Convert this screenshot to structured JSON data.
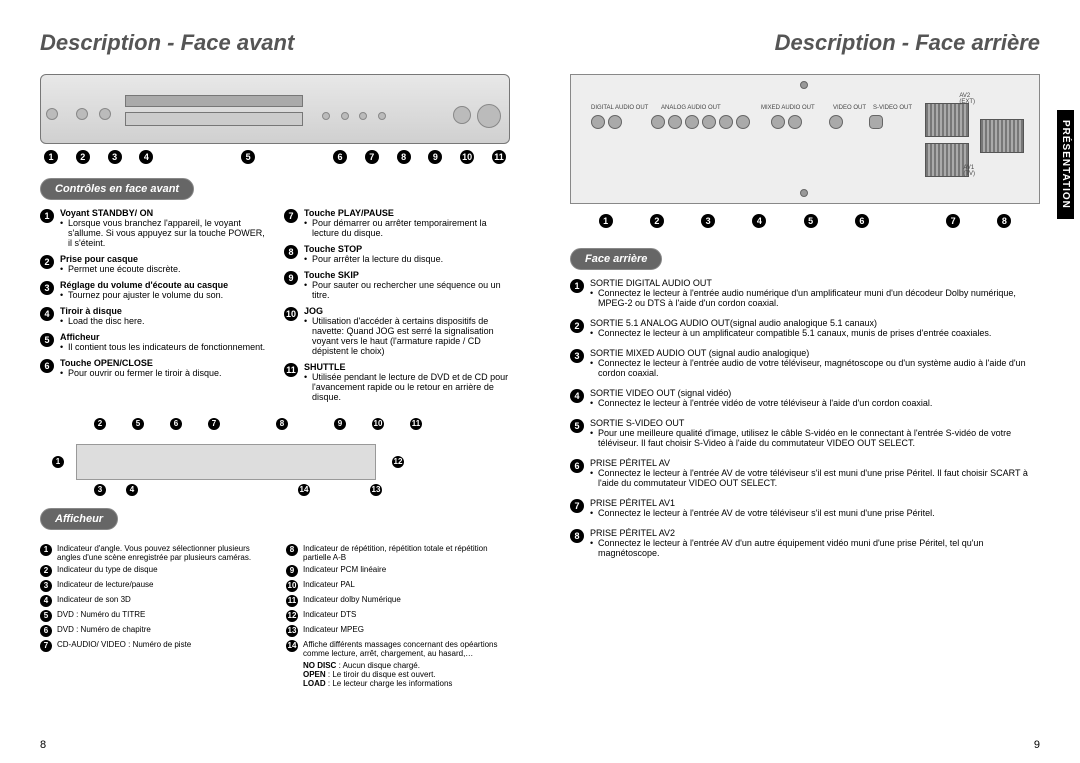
{
  "left": {
    "title": "Description - Face avant",
    "controls_heading": "Contrôles en face avant",
    "front_controls_col1": [
      {
        "n": "1",
        "title": "Voyant STANDBY/ ON",
        "desc": "Lorsque vous branchez l'appareil, le voyant s'allume. Si vous appuyez sur la touche POWER, il s'éteint."
      },
      {
        "n": "2",
        "title": "Prise pour casque",
        "desc": "Permet une écoute discrète."
      },
      {
        "n": "3",
        "title": "Réglage du volume d'écoute au casque",
        "desc": "Tournez pour ajuster le volume du son."
      },
      {
        "n": "4",
        "title": "Tiroir à disque",
        "desc": "Load the disc here."
      },
      {
        "n": "5",
        "title": "Afficheur",
        "desc": "Il contient tous les indicateurs de fonctionnement."
      },
      {
        "n": "6",
        "title": "Touche OPEN/CLOSE",
        "desc": "Pour ouvrir ou fermer le tiroir à disque."
      }
    ],
    "front_controls_col2": [
      {
        "n": "7",
        "title": "Touche PLAY/PAUSE",
        "desc": "Pour démarrer ou arrêter temporairement la lecture du disque."
      },
      {
        "n": "8",
        "title": "Touche STOP",
        "desc": "Pour arrêter la lecture du disque."
      },
      {
        "n": "9",
        "title": "Touche SKIP",
        "desc": "Pour sauter ou rechercher une séquence ou un titre."
      },
      {
        "n": "10",
        "title": "JOG",
        "desc": "Utilisation d'accéder à certains dispositifs de navette: Quand JOG est serré la signalisation voyant vers le haut (l'armature rapide / CD dépistent le choix)"
      },
      {
        "n": "11",
        "title": "SHUTTLE",
        "desc": "Utilisée pendant le lecture de DVD et de CD pour l'avancement rapide ou le retour en arrière de disque."
      }
    ],
    "afficheur_heading": "Afficheur",
    "afficheur_col1": [
      {
        "n": "1",
        "text": "Indicateur d'angle. Vous pouvez sélectionner plusieurs angles d'une scène enregistrée par plusieurs caméras."
      },
      {
        "n": "2",
        "text": "Indicateur du type de disque"
      },
      {
        "n": "3",
        "text": "Indicateur de lecture/pause"
      },
      {
        "n": "4",
        "text": "Indicateur de son 3D"
      },
      {
        "n": "5",
        "text": "DVD : Numéro du TITRE"
      },
      {
        "n": "6",
        "text": "DVD : Numéro de chapitre"
      },
      {
        "n": "7",
        "text": "CD-AUDIO/ VIDEO : Numéro de piste"
      }
    ],
    "afficheur_col2": [
      {
        "n": "8",
        "text": "Indicateur de répétition, répétition totale et répétition partielle A-B"
      },
      {
        "n": "9",
        "text": "Indicateur PCM linéaire"
      },
      {
        "n": "10",
        "text": "Indicateur PAL"
      },
      {
        "n": "11",
        "text": "Indicateur dolby Numérique"
      },
      {
        "n": "12",
        "text": "Indicateur DTS"
      },
      {
        "n": "13",
        "text": "Indicateur MPEG"
      },
      {
        "n": "14",
        "text": "Affiche différents massages concernant des opéartions comme lecture, arrêt, chargement, au hasard,…"
      }
    ],
    "afficheur_notes": [
      {
        "k": "NO DISC",
        "v": ": Aucun disque chargé."
      },
      {
        "k": "OPEN",
        "v": ": Le tiroir du disque est ouvert."
      },
      {
        "k": "LOAD",
        "v": ": Le lecteur charge les informations"
      }
    ],
    "page": "8"
  },
  "right": {
    "title": "Description - Face arrière",
    "side_tab": "PRÉSENTATION",
    "rear_heading": "Face arrière",
    "rear_items": [
      {
        "n": "1",
        "title": "SORTIE DIGITAL AUDIO OUT",
        "desc": "Connectez le lecteur à l'entrée audio numérique d'un amplificateur muni d'un décodeur Dolby numérique, MPEG-2 ou DTS à l'aide d'un cordon coaxial."
      },
      {
        "n": "2",
        "title": "SORTIE 5.1 ANALOG AUDIO OUT(signal audio analogique 5.1 canaux)",
        "desc": "Connectez le lecteur à un amplificateur compatible 5.1 canaux, munis de prises d'entrée coaxiales."
      },
      {
        "n": "3",
        "title": "SORTIE MIXED AUDIO OUT (signal audio analogique)",
        "desc": "Connectez le lecteur à l'entrée audio de votre téléviseur, magnétoscope ou d'un système audio à l'aide d'un cordon coaxial."
      },
      {
        "n": "4",
        "title": "SORTIE VIDEO OUT (signal vidéo)",
        "desc": "Connectez le lecteur à l'entrée vidéo de votre téléviseur à l'aide d'un cordon coaxial."
      },
      {
        "n": "5",
        "title": "SORTIE S-VIDEO OUT",
        "desc": "Pour une meilleure qualité d'image, utilisez le câble S-vidéo en le connectant à l'entrée S-vidéo de votre téléviseur. Il faut choisir S-Video à l'aide du commutateur VIDEO OUT SELECT."
      },
      {
        "n": "6",
        "title": "PRISE PÉRITEL AV",
        "desc": "Connectez le lecteur à l'entrée AV de votre téléviseur s'il est muni d'une prise Péritel. Il faut choisir SCART à l'aide du commutateur VIDEO OUT SELECT."
      },
      {
        "n": "7",
        "title": "PRISE PÉRITEL AV1",
        "desc": "Connectez le lecteur à l'entrée AV de votre téléviseur s'il est muni d'une prise Péritel."
      },
      {
        "n": "8",
        "title": "PRISE PÉRITEL AV2",
        "desc": "Connectez le lecteur à l'entrée AV d'un autre équipement vidéo muni d'une prise Péritel, tel qu'un magnétoscope."
      }
    ],
    "page": "9"
  }
}
